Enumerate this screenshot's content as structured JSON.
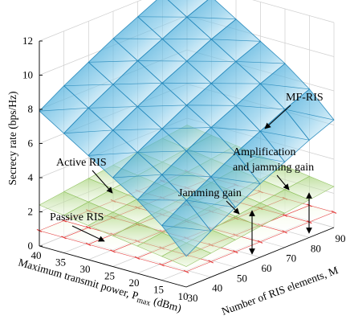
{
  "chart_data": {
    "type": "surface3d",
    "title": "",
    "zlabel": "Secrecy rate (bps/Hz)",
    "xlabel": "Maximum transmit power, P",
    "xlabel_sub": "max",
    "xlabel_unit": " (dBm)",
    "ylabel": "Number of RIS elements, M",
    "x_ticks": [
      "40",
      "35",
      "30",
      "25",
      "20",
      "15",
      "10"
    ],
    "y_ticks": [
      "30",
      "40",
      "50",
      "60",
      "70",
      "80",
      "90"
    ],
    "z_ticks": [
      "0",
      "2",
      "4",
      "6",
      "8",
      "10",
      "12"
    ],
    "xlim": [
      10,
      40
    ],
    "ylim": [
      30,
      90
    ],
    "zlim": [
      0,
      12
    ],
    "x": [
      40,
      35,
      30,
      25,
      20,
      15,
      10
    ],
    "y": [
      30,
      40,
      50,
      60,
      70,
      80,
      90
    ],
    "series": [
      {
        "name": "MF-RIS",
        "color": "#3aa6d6",
        "z": [
          [
            7.9,
            8.8,
            9.6,
            10.4,
            11.1,
            11.8,
            12.4
          ],
          [
            7.0,
            7.9,
            8.7,
            9.5,
            10.2,
            10.9,
            11.5
          ],
          [
            6.1,
            7.0,
            7.8,
            8.6,
            9.3,
            10.0,
            10.6
          ],
          [
            5.2,
            6.1,
            6.9,
            7.7,
            8.4,
            9.1,
            9.7
          ],
          [
            4.3,
            5.2,
            6.0,
            6.8,
            7.5,
            8.2,
            8.8
          ],
          [
            3.2,
            4.1,
            4.9,
            5.7,
            6.4,
            7.1,
            7.7
          ],
          [
            1.8,
            2.7,
            3.5,
            4.3,
            5.0,
            5.7,
            6.3
          ]
        ]
      },
      {
        "name": "Active RIS",
        "color": "#9fcf6e",
        "z": [
          [
            2.4,
            2.6,
            2.8,
            3.0,
            3.2,
            3.4,
            3.6
          ],
          [
            2.2,
            2.4,
            2.6,
            2.8,
            3.0,
            3.2,
            3.4
          ],
          [
            2.0,
            2.2,
            2.4,
            2.6,
            2.8,
            3.0,
            3.2
          ],
          [
            1.8,
            2.0,
            2.2,
            2.4,
            2.6,
            2.8,
            3.0
          ],
          [
            1.6,
            1.8,
            2.0,
            2.2,
            2.4,
            2.6,
            2.8
          ],
          [
            1.4,
            1.6,
            1.8,
            2.0,
            2.2,
            2.4,
            2.6
          ],
          [
            1.2,
            1.4,
            1.6,
            1.8,
            2.0,
            2.2,
            2.4
          ]
        ]
      },
      {
        "name": "Passive RIS",
        "color": "#e23c3c",
        "z": [
          [
            0.9,
            0.9,
            0.9,
            0.9,
            0.9,
            0.9,
            0.9
          ],
          [
            0.9,
            0.9,
            0.9,
            0.9,
            0.9,
            0.9,
            0.9
          ],
          [
            0.9,
            0.9,
            0.9,
            0.9,
            0.9,
            0.9,
            0.9
          ],
          [
            0.9,
            0.9,
            0.9,
            0.9,
            0.9,
            0.9,
            0.9
          ],
          [
            0.9,
            0.9,
            0.9,
            0.9,
            0.9,
            0.9,
            0.9
          ],
          [
            0.9,
            0.9,
            0.9,
            0.9,
            0.9,
            0.9,
            0.9
          ],
          [
            0.9,
            0.9,
            0.9,
            0.9,
            0.9,
            0.9,
            0.9
          ]
        ]
      }
    ],
    "annotations": {
      "mf_ris": "MF-RIS",
      "active_ris": "Active RIS",
      "passive_ris": "Passive RIS",
      "amplification_line1": "Amplification",
      "amplification_line2": "and jamming gain",
      "jamming_gain": "Jamming gain"
    },
    "grid": true,
    "legend": "none"
  }
}
